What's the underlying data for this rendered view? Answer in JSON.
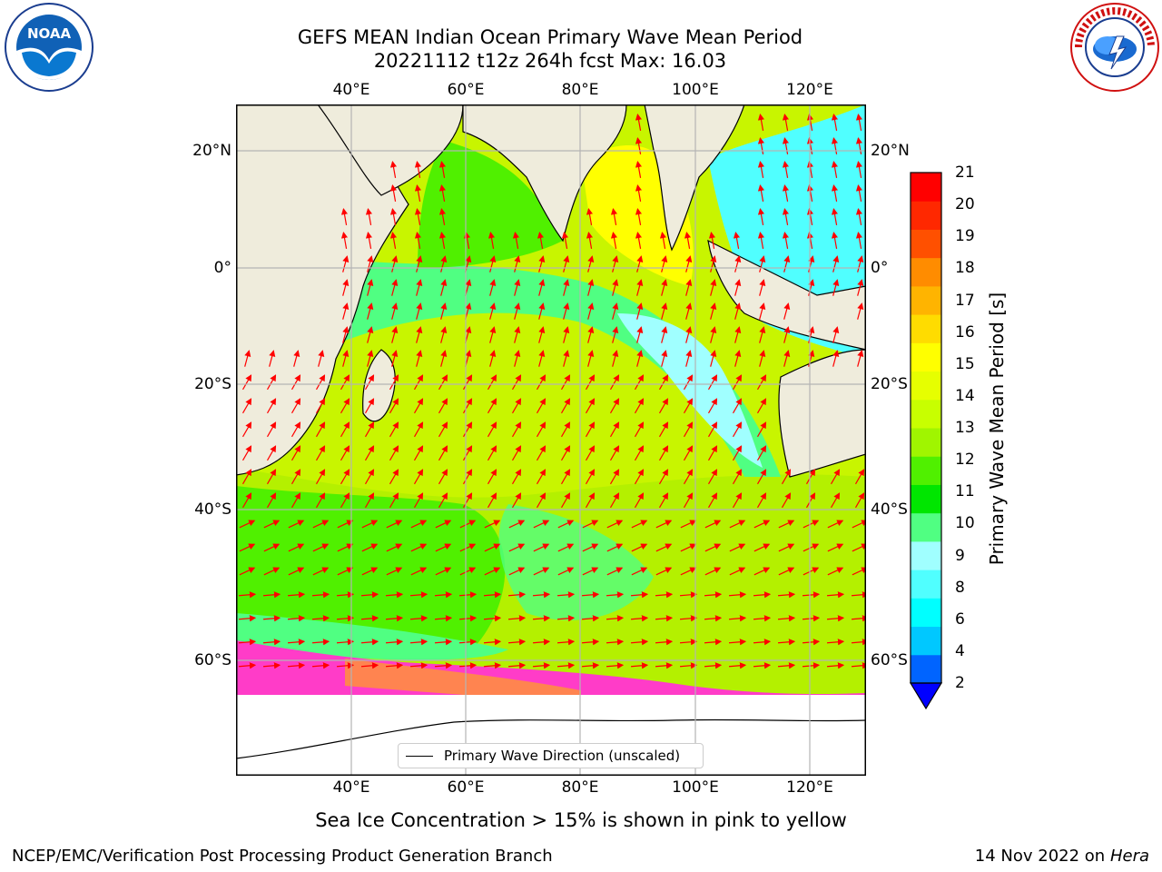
{
  "header": {
    "title_line1": "GEFS MEAN Indian Ocean Primary Wave Mean Period",
    "title_line2": "20221112 t12z 264h fcst   Max: 16.03"
  },
  "logos": {
    "left": "noaa-logo",
    "right": "nws-logo"
  },
  "map": {
    "lon_ticks": [
      "40°E",
      "60°E",
      "80°E",
      "100°E",
      "120°E"
    ],
    "lat_ticks": [
      "20°N",
      "0°",
      "20°S",
      "40°S",
      "60°S"
    ],
    "legend_label": "Primary Wave Direction (unscaled)",
    "land_color": "#efecdc",
    "ice_color": "#ff3cc8",
    "arrow_color": "#ff0000",
    "grid_color": "#b4b4b4"
  },
  "colorbar": {
    "label": "Primary Wave Mean Period [s]",
    "ticks": [
      "2",
      "4",
      "6",
      "8",
      "9",
      "10",
      "11",
      "12",
      "13",
      "14",
      "15",
      "16",
      "17",
      "18",
      "19",
      "20",
      "21"
    ],
    "colors": [
      "#0064ff",
      "#00c8ff",
      "#00ffff",
      "#50ffff",
      "#a0ffff",
      "#50ff82",
      "#00e600",
      "#50f000",
      "#a0f500",
      "#c8ff00",
      "#e6ff00",
      "#ffff00",
      "#ffdc00",
      "#ffb400",
      "#ff8c00",
      "#ff5000",
      "#ff2800",
      "#ff0000"
    ],
    "under_color": "#0000ff"
  },
  "caption": "Sea Ice Concentration > 15% is shown in pink to yellow",
  "footer": {
    "left": "NCEP/EMC/Verification Post Processing Product Generation Branch",
    "date": "14 Nov 2022 on",
    "host": "Hera"
  }
}
